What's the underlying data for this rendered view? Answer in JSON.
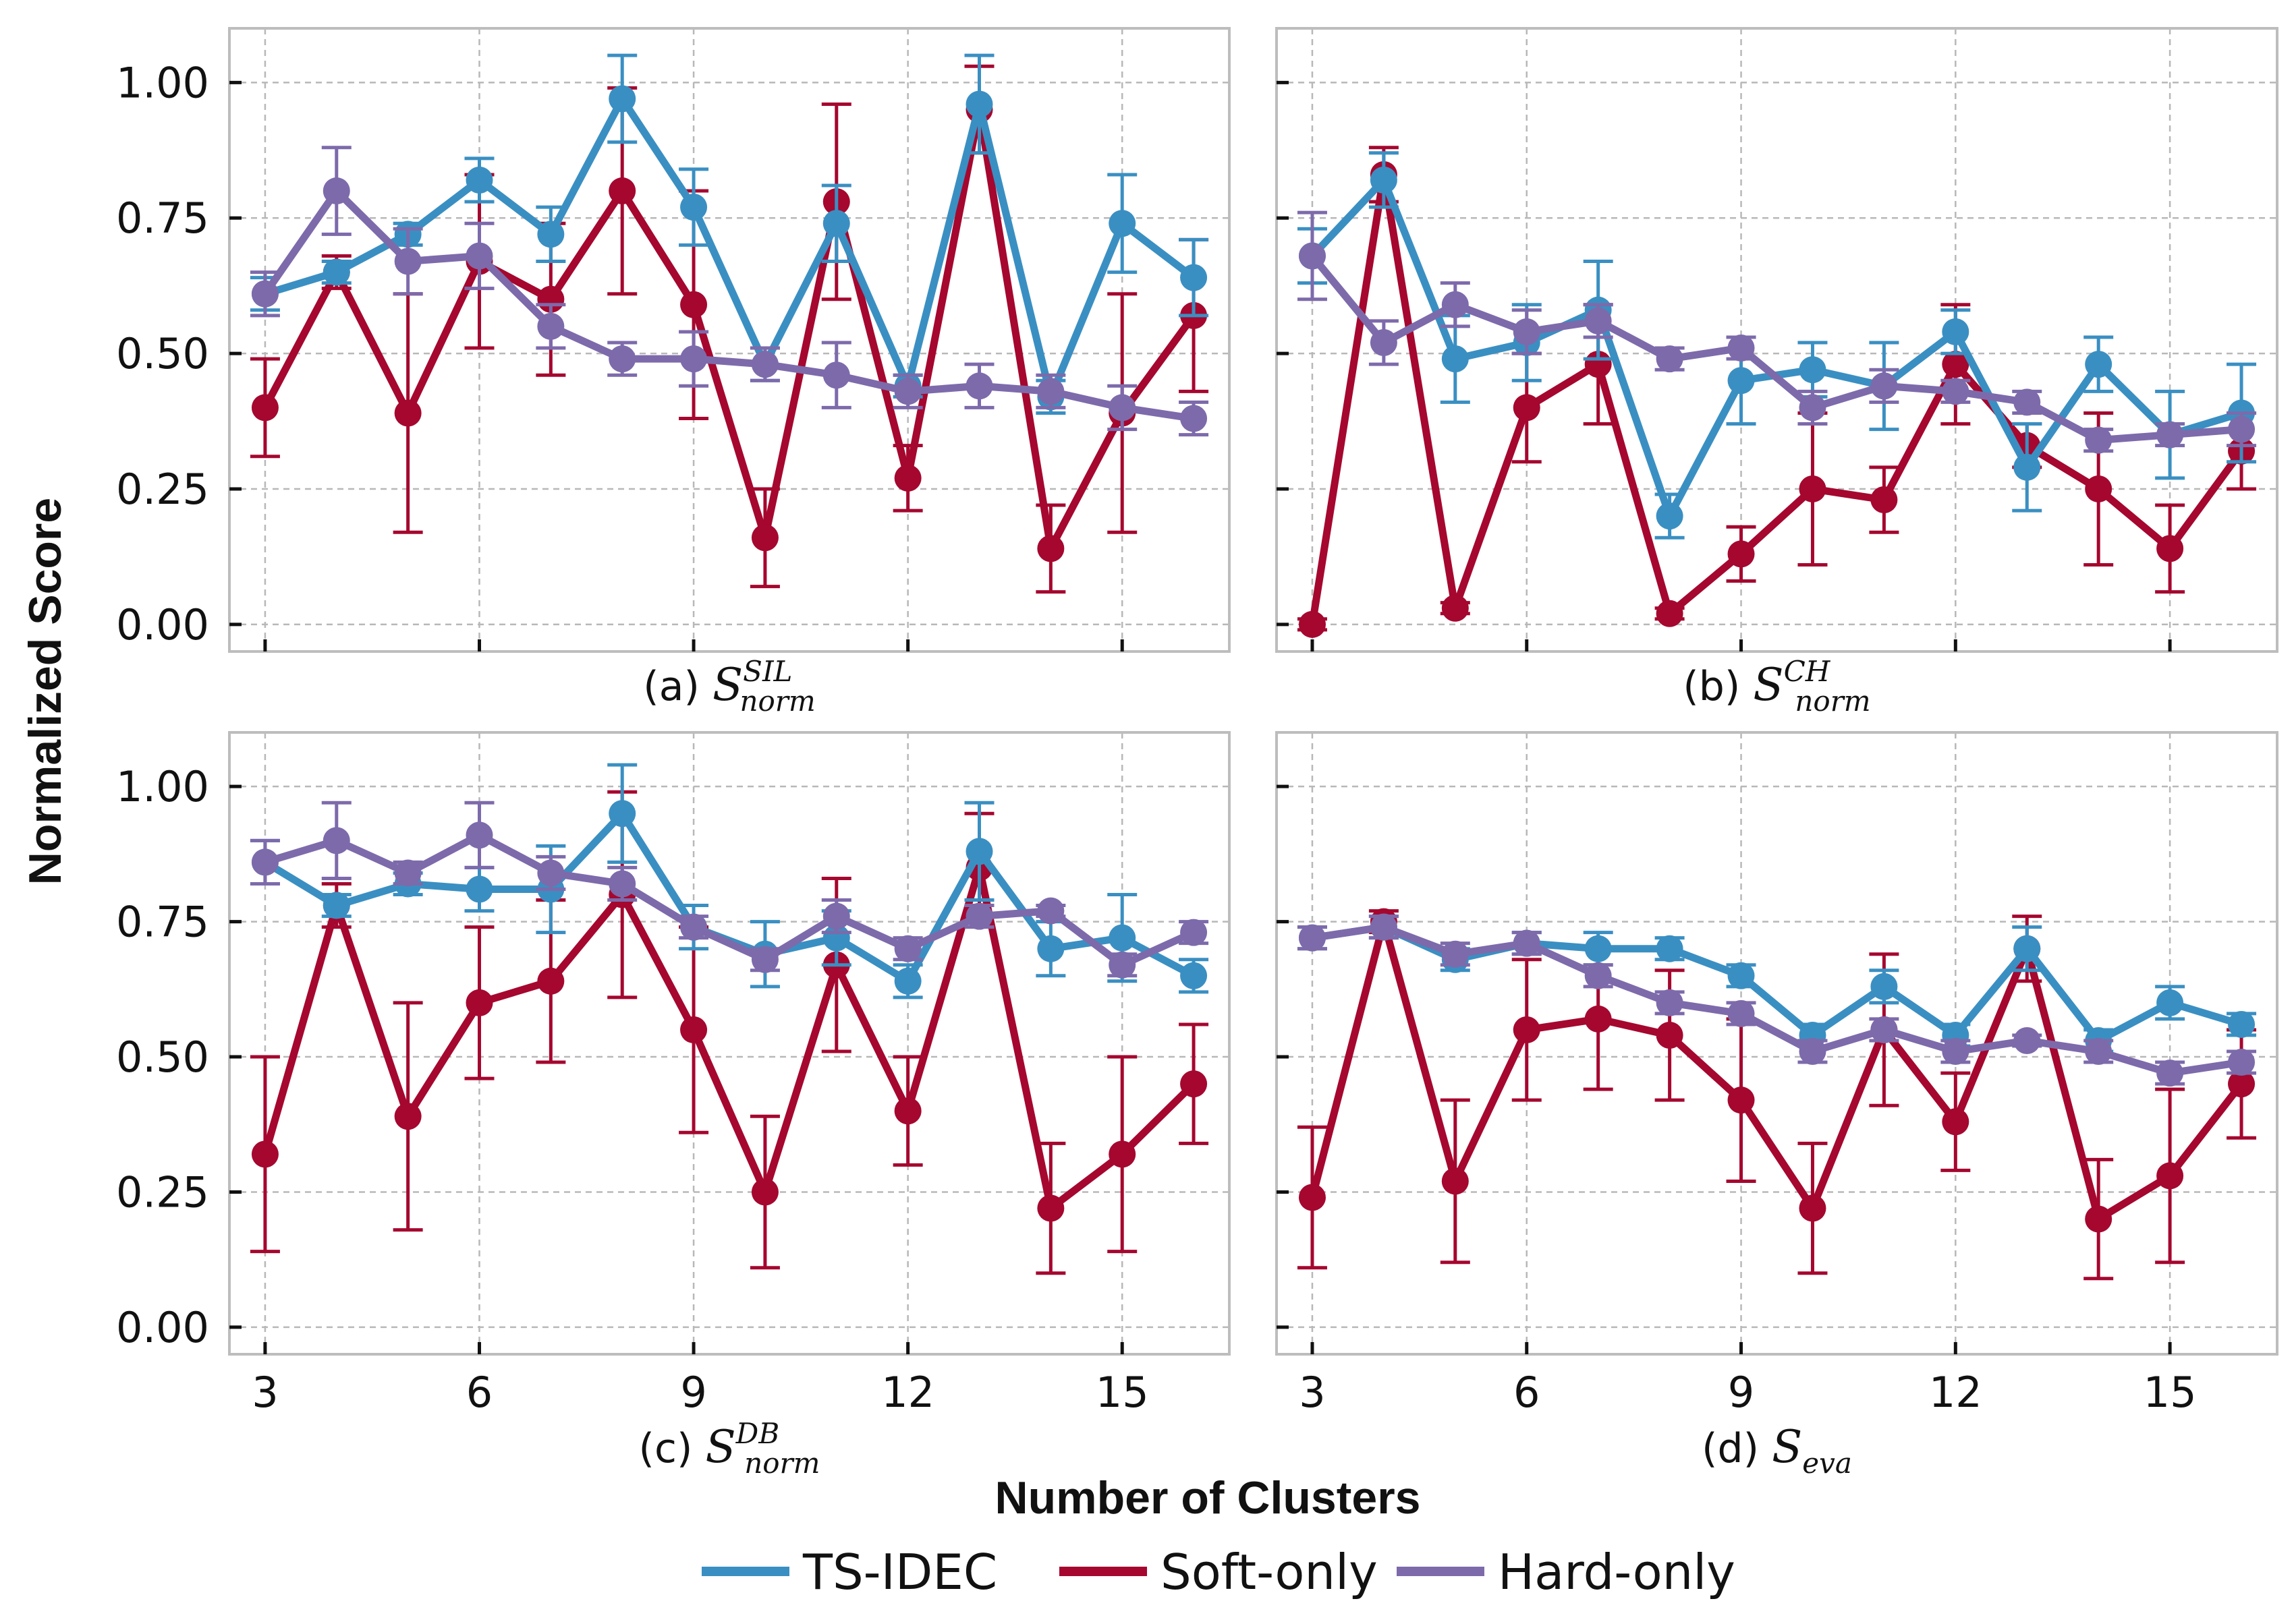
{
  "chart_data": {
    "type": "line",
    "ylabel": "Normalized Score",
    "xlabel": "Number of Clusters",
    "x": [
      3,
      4,
      5,
      6,
      7,
      8,
      9,
      10,
      11,
      12,
      13,
      14,
      15,
      16
    ],
    "xlim": [
      2.5,
      16.5
    ],
    "ylim": [
      -0.05,
      1.1
    ],
    "xticks": [
      "3",
      "6",
      "9",
      "12",
      "15"
    ],
    "yticks": [
      "0.00",
      "0.25",
      "0.50",
      "0.75",
      "1.00"
    ],
    "grid": true,
    "legend_position": "bottom-center",
    "colors": {
      "TS-IDEC": "#3a8fc2",
      "Soft-only": "#a5072f",
      "Hard-only": "#7d6aab"
    },
    "legend": [
      "TS-IDEC",
      "Soft-only",
      "Hard-only"
    ],
    "panels": [
      {
        "id": "a",
        "label_prefix": "(a) ",
        "label_base": "S",
        "label_sub": "norm",
        "label_sup": "SIL",
        "series": [
          {
            "name": "TS-IDEC",
            "values": [
              0.61,
              0.65,
              0.72,
              0.82,
              0.72,
              0.97,
              0.77,
              0.48,
              0.74,
              0.44,
              0.96,
              0.42,
              0.74,
              0.64
            ],
            "err": [
              0.03,
              0.02,
              0.02,
              0.04,
              0.05,
              0.08,
              0.07,
              0.03,
              0.07,
              0.02,
              0.09,
              0.03,
              0.09,
              0.07
            ]
          },
          {
            "name": "Soft-only",
            "values": [
              0.4,
              0.65,
              0.39,
              0.67,
              0.6,
              0.8,
              0.59,
              0.16,
              0.78,
              0.27,
              0.95,
              0.14,
              0.39,
              0.57
            ],
            "err": [
              0.09,
              0.03,
              0.22,
              0.16,
              0.14,
              0.19,
              0.21,
              0.09,
              0.18,
              0.06,
              0.08,
              0.08,
              0.22,
              0.14
            ]
          },
          {
            "name": "Hard-only",
            "values": [
              0.61,
              0.8,
              0.67,
              0.68,
              0.55,
              0.49,
              0.49,
              0.48,
              0.46,
              0.43,
              0.44,
              0.43,
              0.4,
              0.38
            ],
            "err": [
              0.04,
              0.08,
              0.06,
              0.06,
              0.04,
              0.03,
              0.05,
              0.03,
              0.06,
              0.03,
              0.04,
              0.03,
              0.04,
              0.03
            ]
          }
        ]
      },
      {
        "id": "b",
        "label_prefix": "(b) ",
        "label_base": "S",
        "label_sub": "norm",
        "label_sup": "CH",
        "series": [
          {
            "name": "TS-IDEC",
            "values": [
              0.68,
              0.82,
              0.49,
              0.52,
              0.58,
              0.2,
              0.45,
              0.47,
              0.44,
              0.54,
              0.29,
              0.48,
              0.35,
              0.39
            ],
            "err": [
              0.05,
              0.05,
              0.08,
              0.07,
              0.09,
              0.04,
              0.08,
              0.05,
              0.08,
              0.04,
              0.08,
              0.05,
              0.08,
              0.09
            ]
          },
          {
            "name": "Soft-only",
            "values": [
              0.0,
              0.83,
              0.03,
              0.4,
              0.48,
              0.02,
              0.13,
              0.25,
              0.23,
              0.48,
              0.33,
              0.25,
              0.14,
              0.32
            ],
            "err": [
              0.01,
              0.05,
              0.01,
              0.1,
              0.11,
              0.01,
              0.05,
              0.14,
              0.06,
              0.11,
              0.04,
              0.14,
              0.08,
              0.07
            ]
          },
          {
            "name": "Hard-only",
            "values": [
              0.68,
              0.52,
              0.59,
              0.54,
              0.56,
              0.49,
              0.51,
              0.4,
              0.44,
              0.43,
              0.41,
              0.34,
              0.35,
              0.36
            ],
            "err": [
              0.08,
              0.04,
              0.04,
              0.04,
              0.03,
              0.02,
              0.02,
              0.03,
              0.03,
              0.02,
              0.02,
              0.02,
              0.02,
              0.03
            ]
          }
        ]
      },
      {
        "id": "c",
        "label_prefix": "(c) ",
        "label_base": "S",
        "label_sub": "norm",
        "label_sup": "DB",
        "series": [
          {
            "name": "TS-IDEC",
            "values": [
              0.86,
              0.78,
              0.82,
              0.81,
              0.81,
              0.95,
              0.74,
              0.69,
              0.72,
              0.64,
              0.88,
              0.7,
              0.72,
              0.65
            ],
            "err": [
              0.04,
              0.02,
              0.02,
              0.04,
              0.08,
              0.09,
              0.04,
              0.06,
              0.05,
              0.03,
              0.09,
              0.05,
              0.08,
              0.03
            ]
          },
          {
            "name": "Soft-only",
            "values": [
              0.32,
              0.78,
              0.39,
              0.6,
              0.64,
              0.8,
              0.55,
              0.25,
              0.67,
              0.4,
              0.85,
              0.22,
              0.32,
              0.45
            ],
            "err": [
              0.18,
              0.04,
              0.21,
              0.14,
              0.15,
              0.19,
              0.19,
              0.14,
              0.16,
              0.1,
              0.1,
              0.12,
              0.18,
              0.11
            ]
          },
          {
            "name": "Hard-only",
            "values": [
              0.86,
              0.9,
              0.84,
              0.91,
              0.84,
              0.82,
              0.74,
              0.68,
              0.76,
              0.7,
              0.76,
              0.77,
              0.67,
              0.73
            ],
            "err": [
              0.04,
              0.07,
              0.02,
              0.06,
              0.03,
              0.03,
              0.02,
              0.02,
              0.03,
              0.02,
              0.02,
              0.01,
              0.02,
              0.02
            ]
          }
        ]
      },
      {
        "id": "d",
        "label_prefix": "(d) ",
        "label_base": "S",
        "label_sub": "eva",
        "label_sup": "",
        "series": [
          {
            "name": "TS-IDEC",
            "values": [
              0.72,
              0.74,
              0.68,
              0.71,
              0.7,
              0.7,
              0.65,
              0.54,
              0.63,
              0.54,
              0.7,
              0.53,
              0.6,
              0.56
            ],
            "err": [
              0.02,
              0.02,
              0.02,
              0.02,
              0.03,
              0.02,
              0.02,
              0.02,
              0.03,
              0.02,
              0.04,
              0.02,
              0.03,
              0.02
            ]
          },
          {
            "name": "Soft-only",
            "values": [
              0.24,
              0.75,
              0.27,
              0.55,
              0.57,
              0.54,
              0.42,
              0.22,
              0.55,
              0.38,
              0.7,
              0.2,
              0.28,
              0.45
            ],
            "err": [
              0.13,
              0.02,
              0.15,
              0.13,
              0.13,
              0.12,
              0.15,
              0.12,
              0.14,
              0.09,
              0.06,
              0.11,
              0.16,
              0.1
            ]
          },
          {
            "name": "Hard-only",
            "values": [
              0.72,
              0.74,
              0.69,
              0.71,
              0.65,
              0.6,
              0.58,
              0.51,
              0.55,
              0.51,
              0.53,
              0.51,
              0.47,
              0.49
            ],
            "err": [
              0.02,
              0.02,
              0.02,
              0.02,
              0.02,
              0.02,
              0.02,
              0.02,
              0.02,
              0.02,
              0.01,
              0.02,
              0.02,
              0.02
            ]
          }
        ]
      }
    ]
  }
}
